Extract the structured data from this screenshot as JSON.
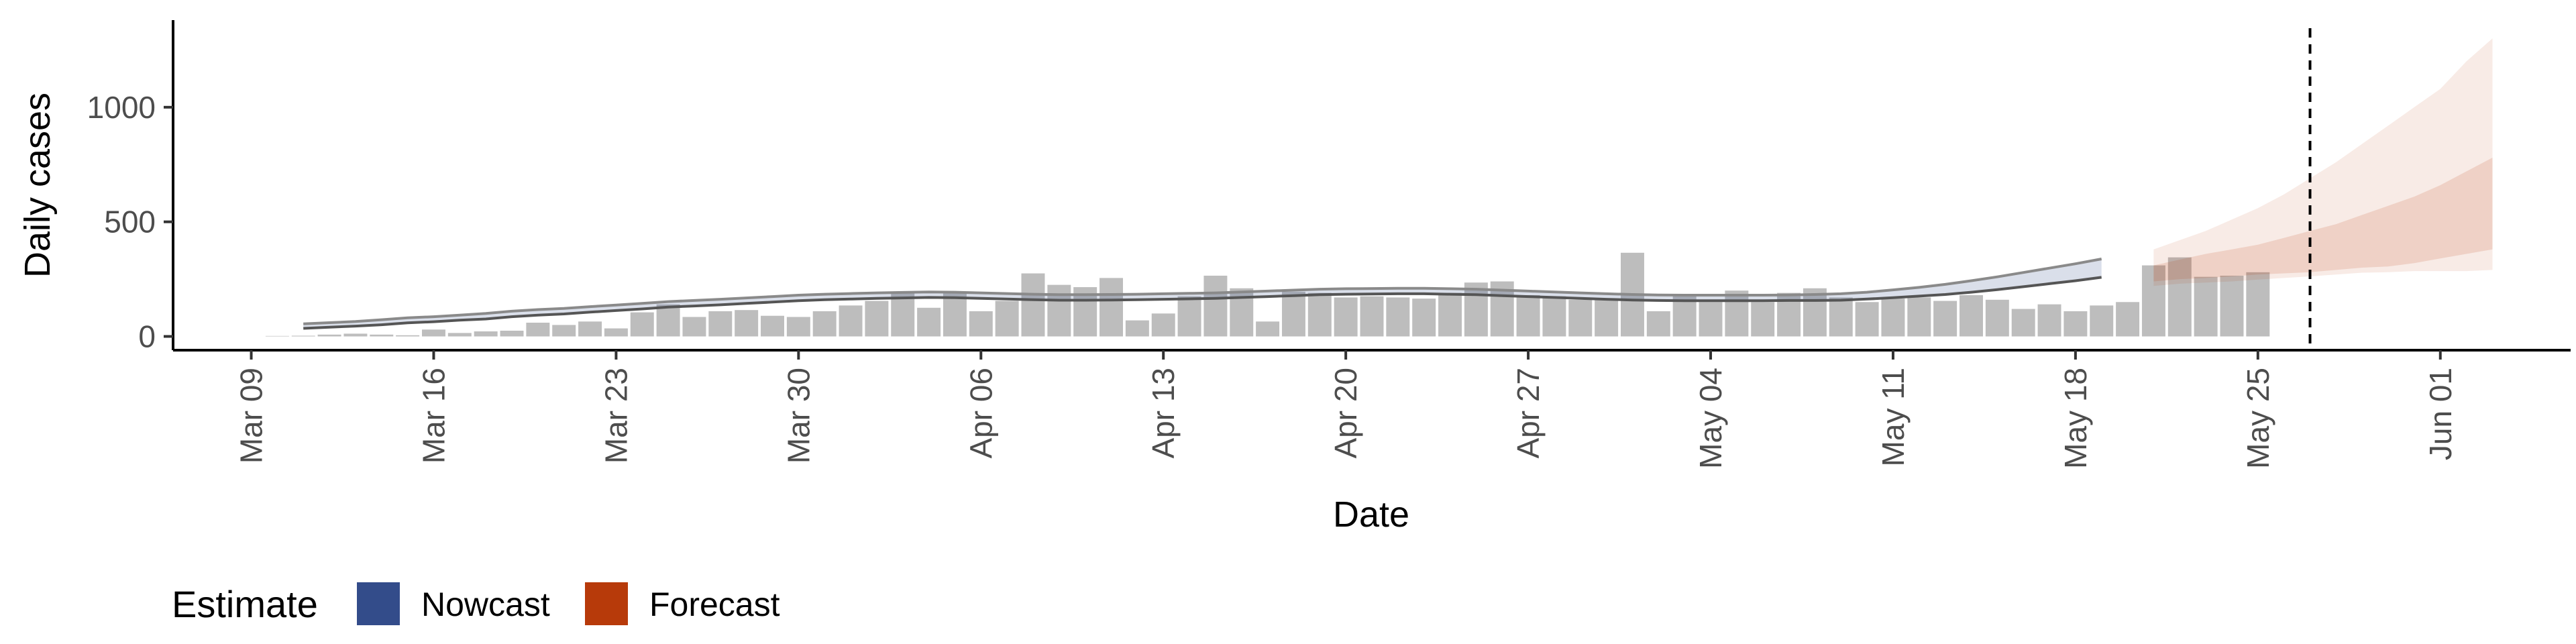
{
  "chart_data": {
    "type": "bar",
    "xlabel": "Date",
    "ylabel": "Daily cases",
    "x_ticks": [
      {
        "date": "2020-03-09",
        "label": "Mar 09"
      },
      {
        "date": "2020-03-16",
        "label": "Mar 16"
      },
      {
        "date": "2020-03-23",
        "label": "Mar 23"
      },
      {
        "date": "2020-03-30",
        "label": "Mar 30"
      },
      {
        "date": "2020-04-06",
        "label": "Apr 06"
      },
      {
        "date": "2020-04-13",
        "label": "Apr 13"
      },
      {
        "date": "2020-04-20",
        "label": "Apr 20"
      },
      {
        "date": "2020-04-27",
        "label": "Apr 27"
      },
      {
        "date": "2020-05-04",
        "label": "May 04"
      },
      {
        "date": "2020-05-11",
        "label": "May 11"
      },
      {
        "date": "2020-05-18",
        "label": "May 18"
      },
      {
        "date": "2020-05-25",
        "label": "May 25"
      },
      {
        "date": "2020-06-01",
        "label": "Jun 01"
      }
    ],
    "y_ticks": [
      0,
      500,
      1000
    ],
    "xlim": [
      "2020-03-06",
      "2020-06-06"
    ],
    "ylim": [
      -60,
      1380
    ],
    "grid": false,
    "reference_line": {
      "date": "2020-05-27",
      "style": "dashed"
    },
    "series": [
      {
        "type": "bar",
        "start_date": "2020-03-10",
        "values": [
          2,
          3,
          8,
          12,
          8,
          5,
          30,
          15,
          22,
          25,
          60,
          50,
          65,
          35,
          105,
          140,
          85,
          110,
          115,
          90,
          85,
          110,
          135,
          155,
          195,
          125,
          190,
          110,
          155,
          275,
          225,
          215,
          255,
          70,
          100,
          175,
          265,
          210,
          65,
          195,
          190,
          170,
          175,
          170,
          165,
          190,
          235,
          240,
          180,
          175,
          160,
          160,
          365,
          110,
          185,
          150,
          200,
          150,
          190,
          210,
          170,
          150,
          165,
          170,
          155,
          180,
          160,
          120,
          140,
          110,
          135,
          150,
          310,
          345,
          260,
          265,
          280
        ]
      },
      {
        "type": "band",
        "start_date": "2020-03-11",
        "median": [
          45,
          50,
          55,
          62,
          70,
          75,
          82,
          88,
          98,
          105,
          110,
          118,
          125,
          132,
          140,
          145,
          150,
          156,
          162,
          168,
          172,
          175,
          178,
          180,
          182,
          181,
          178,
          175,
          172,
          170,
          170,
          171,
          172,
          174,
          176,
          178,
          182,
          186,
          190,
          194,
          196,
          197,
          198,
          198,
          196,
          194,
          190,
          186,
          182,
          178,
          174,
          171,
          169,
          168,
          168,
          168,
          168,
          169,
          170,
          172,
          178,
          186,
          195,
          205,
          218,
          232,
          248,
          264,
          280,
          298
        ],
        "half": [
          10,
          10,
          10,
          11,
          11,
          11,
          11,
          12,
          12,
          12,
          12,
          12,
          12,
          12,
          12,
          12,
          12,
          12,
          12,
          12,
          12,
          12,
          12,
          12,
          12,
          12,
          12,
          12,
          12,
          12,
          12,
          12,
          12,
          12,
          12,
          12,
          12,
          12,
          12,
          12,
          12,
          12,
          12,
          12,
          12,
          12,
          12,
          12,
          12,
          12,
          12,
          12,
          12,
          12,
          12,
          12,
          12,
          12,
          13,
          14,
          15,
          17,
          19,
          22,
          25,
          28,
          31,
          34,
          37,
          40
        ]
      },
      {
        "name": "Forecast",
        "type": "forecast_band",
        "start_date": "2020-05-21",
        "color": "#b73a0a",
        "outer_low": [
          220,
          230,
          235,
          240,
          248,
          255,
          262,
          270,
          278,
          280,
          285,
          285,
          285,
          290
        ],
        "outer_high": [
          380,
          420,
          460,
          510,
          560,
          620,
          690,
          760,
          840,
          920,
          1000,
          1080,
          1200,
          1300
        ],
        "inner_low": [
          240,
          250,
          255,
          262,
          270,
          275,
          280,
          290,
          300,
          305,
          320,
          340,
          360,
          380
        ],
        "inner_high": [
          310,
          335,
          360,
          380,
          400,
          430,
          460,
          490,
          530,
          570,
          610,
          660,
          720,
          780
        ]
      }
    ],
    "legend": {
      "title": "Estimate",
      "placement": "bottom-left",
      "items": [
        {
          "label": "Nowcast",
          "color": "#334c8a"
        },
        {
          "label": "Forecast",
          "color": "#b73a0a"
        }
      ]
    }
  }
}
